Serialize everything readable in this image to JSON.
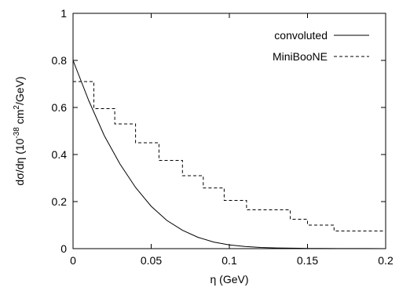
{
  "chart_data": {
    "type": "line",
    "xlabel": "η (GeV)",
    "ylabel": {
      "base": "dσ/dη (10",
      "exp1": "-38",
      "mid": " cm",
      "exp2": "2",
      "end": "/GeV)"
    },
    "xlim": [
      0,
      0.2
    ],
    "ylim": [
      0,
      1
    ],
    "xticks": [
      0,
      0.05,
      0.1,
      0.15,
      0.2
    ],
    "xtick_labels": [
      "0",
      "0.05",
      "0.1",
      "0.15",
      "0.2"
    ],
    "yticks": [
      0,
      0.2,
      0.4,
      0.6,
      0.8,
      1
    ],
    "ytick_labels": [
      "0",
      "0.2",
      "0.4",
      "0.6",
      "0.8",
      "1"
    ],
    "grid": false,
    "legend_position": "top-right",
    "series": [
      {
        "name": "convoluted",
        "style": "solid",
        "x": [
          0,
          0.01,
          0.02,
          0.03,
          0.04,
          0.05,
          0.06,
          0.07,
          0.08,
          0.09,
          0.1,
          0.11,
          0.12,
          0.13,
          0.14,
          0.15,
          0.16,
          0.17,
          0.18,
          0.19,
          0.2
        ],
        "y": [
          0.8,
          0.63,
          0.48,
          0.36,
          0.26,
          0.18,
          0.12,
          0.078,
          0.048,
          0.028,
          0.016,
          0.009,
          0.005,
          0.003,
          0.002,
          0.001,
          0.001,
          0.0005,
          0.0003,
          0.0002,
          0.0001
        ]
      },
      {
        "name": "MiniBooNE",
        "style": "dashed-step",
        "bin_edges": [
          0,
          0.0133,
          0.0267,
          0.04,
          0.055,
          0.07,
          0.0833,
          0.0967,
          0.111,
          0.139,
          0.15,
          0.167,
          0.2
        ],
        "values": [
          0.71,
          0.595,
          0.53,
          0.45,
          0.375,
          0.31,
          0.258,
          0.205,
          0.165,
          0.125,
          0.1,
          0.075
        ]
      }
    ]
  }
}
